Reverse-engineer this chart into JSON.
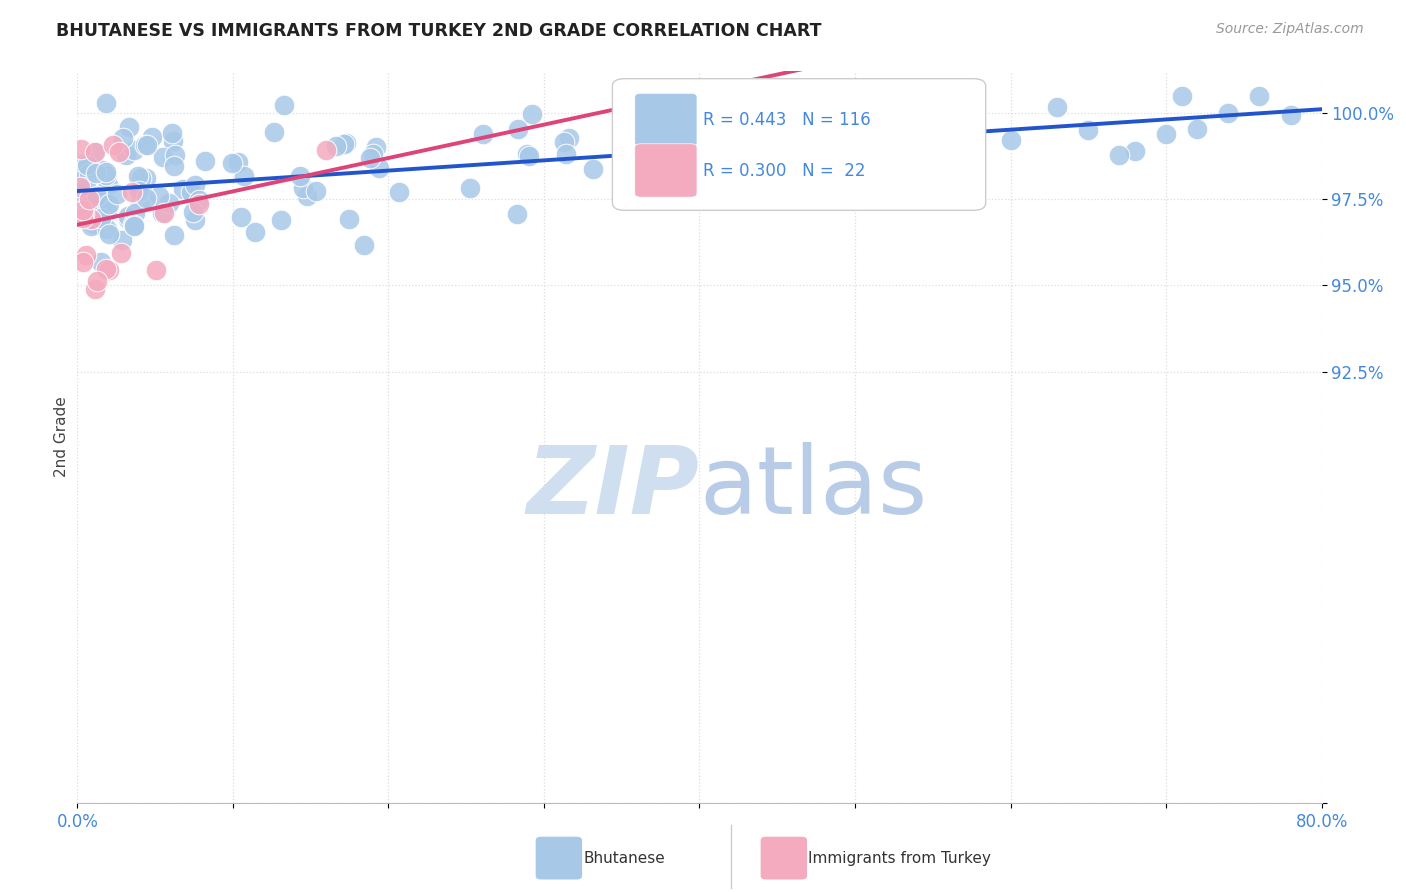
{
  "title": "BHUTANESE VS IMMIGRANTS FROM TURKEY 2ND GRADE CORRELATION CHART",
  "source": "Source: ZipAtlas.com",
  "ylabel": "2nd Grade",
  "xlim": [
    0.0,
    80.0
  ],
  "ylim": [
    80.0,
    101.2
  ],
  "ytick_values": [
    80.0,
    92.5,
    95.0,
    97.5,
    100.0
  ],
  "ytick_labels": [
    "",
    "92.5%",
    "95.0%",
    "97.5%",
    "100.0%"
  ],
  "xtick_values": [
    0,
    10,
    20,
    30,
    40,
    50,
    60,
    70,
    80
  ],
  "xtick_labels": [
    "0.0%",
    "",
    "",
    "",
    "",
    "",
    "",
    "",
    "80.0%"
  ],
  "legend_r_blue": "R = 0.443",
  "legend_n_blue": "N = 116",
  "legend_r_pink": "R = 0.300",
  "legend_n_pink": "N =  22",
  "blue_color": "#a8c8e8",
  "pink_color": "#f4aabf",
  "trendline_blue": "#2255cc",
  "trendline_pink": "#dd4477",
  "watermark_zip": "ZIP",
  "watermark_atlas": "atlas",
  "watermark_color": "#d0dff0",
  "background_color": "#ffffff",
  "grid_color": "#dddddd",
  "ytick_color": "#4488dd",
  "xtick_color": "#4488dd",
  "title_color": "#222222",
  "source_color": "#999999",
  "ylabel_color": "#444444"
}
